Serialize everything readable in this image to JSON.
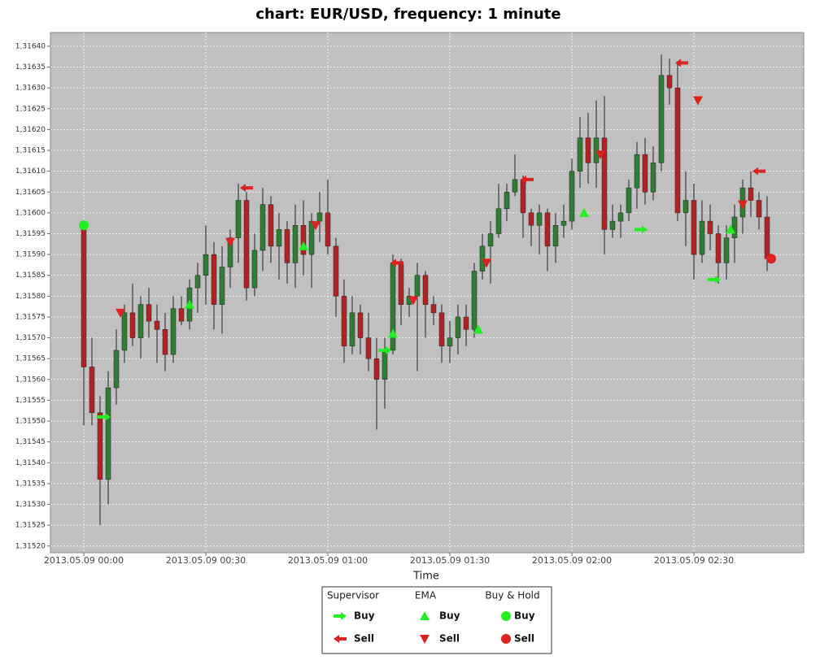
{
  "chart_data": {
    "type": "candlestick",
    "title": "chart: EUR/USD, frequency: 1 minute",
    "x_label": "Time",
    "x": [
      "2013.05.09 00:00",
      "2013.05.09 00:02",
      "2013.05.09 00:04",
      "2013.05.09 00:06",
      "2013.05.09 00:08",
      "2013.05.09 00:10",
      "2013.05.09 00:12",
      "2013.05.09 00:14",
      "2013.05.09 00:16",
      "2013.05.09 00:18",
      "2013.05.09 00:20",
      "2013.05.09 00:22",
      "2013.05.09 00:24",
      "2013.05.09 00:26",
      "2013.05.09 00:28",
      "2013.05.09 00:30",
      "2013.05.09 00:32",
      "2013.05.09 00:34",
      "2013.05.09 00:36",
      "2013.05.09 00:38",
      "2013.05.09 00:40",
      "2013.05.09 00:42",
      "2013.05.09 00:44",
      "2013.05.09 00:46",
      "2013.05.09 00:48",
      "2013.05.09 00:50",
      "2013.05.09 00:52",
      "2013.05.09 00:54",
      "2013.05.09 00:56",
      "2013.05.09 00:58",
      "2013.05.09 01:00",
      "2013.05.09 01:02",
      "2013.05.09 01:04",
      "2013.05.09 01:06",
      "2013.05.09 01:08",
      "2013.05.09 01:10",
      "2013.05.09 01:12",
      "2013.05.09 01:14",
      "2013.05.09 01:16",
      "2013.05.09 01:18",
      "2013.05.09 01:20",
      "2013.05.09 01:22",
      "2013.05.09 01:24",
      "2013.05.09 01:26",
      "2013.05.09 01:28",
      "2013.05.09 01:30",
      "2013.05.09 01:32",
      "2013.05.09 01:34",
      "2013.05.09 01:36",
      "2013.05.09 01:38",
      "2013.05.09 01:40",
      "2013.05.09 01:42",
      "2013.05.09 01:44",
      "2013.05.09 01:46",
      "2013.05.09 01:48",
      "2013.05.09 01:50",
      "2013.05.09 01:52",
      "2013.05.09 01:54",
      "2013.05.09 01:56",
      "2013.05.09 01:58",
      "2013.05.09 02:00",
      "2013.05.09 02:02",
      "2013.05.09 02:04",
      "2013.05.09 02:06",
      "2013.05.09 02:08",
      "2013.05.09 02:10",
      "2013.05.09 02:12",
      "2013.05.09 02:14",
      "2013.05.09 02:16",
      "2013.05.09 02:18",
      "2013.05.09 02:20",
      "2013.05.09 02:22",
      "2013.05.09 02:24",
      "2013.05.09 02:26",
      "2013.05.09 02:28",
      "2013.05.09 02:30",
      "2013.05.09 02:32",
      "2013.05.09 02:34",
      "2013.05.09 02:36",
      "2013.05.09 02:38",
      "2013.05.09 02:40",
      "2013.05.09 02:42",
      "2013.05.09 02:44",
      "2013.05.09 02:46",
      "2013.05.09 02:48"
    ],
    "open": [
      1.31597,
      1.31563,
      1.31552,
      1.31536,
      1.31558,
      1.31567,
      1.31576,
      1.3157,
      1.31578,
      1.31574,
      1.31572,
      1.31566,
      1.31577,
      1.31574,
      1.31582,
      1.31585,
      1.3159,
      1.31578,
      1.31587,
      1.31594,
      1.31603,
      1.31582,
      1.31591,
      1.31602,
      1.31592,
      1.31596,
      1.31588,
      1.31597,
      1.3159,
      1.31598,
      1.316,
      1.31592,
      1.3158,
      1.31568,
      1.31576,
      1.3157,
      1.31565,
      1.3156,
      1.31567,
      1.31588,
      1.31578,
      1.3158,
      1.31585,
      1.31578,
      1.31576,
      1.31568,
      1.3157,
      1.31575,
      1.31572,
      1.31586,
      1.31592,
      1.31595,
      1.31601,
      1.31605,
      1.31608,
      1.316,
      1.31597,
      1.316,
      1.31592,
      1.31597,
      1.31598,
      1.3161,
      1.31618,
      1.31612,
      1.31618,
      1.31596,
      1.31598,
      1.316,
      1.31606,
      1.31614,
      1.31605,
      1.31612,
      1.31633,
      1.3163,
      1.316,
      1.31603,
      1.3159,
      1.31598,
      1.31595,
      1.31588,
      1.31594,
      1.31599,
      1.31606,
      1.31603,
      1.31599
    ],
    "high": [
      1.31598,
      1.3157,
      1.31556,
      1.31562,
      1.31572,
      1.31578,
      1.31583,
      1.3158,
      1.31582,
      1.31578,
      1.31576,
      1.3158,
      1.3158,
      1.31584,
      1.31588,
      1.31597,
      1.31593,
      1.31592,
      1.31596,
      1.31607,
      1.31605,
      1.31595,
      1.31606,
      1.31604,
      1.316,
      1.31598,
      1.31602,
      1.31603,
      1.316,
      1.31605,
      1.31608,
      1.31594,
      1.31584,
      1.3158,
      1.31578,
      1.31576,
      1.3157,
      1.3157,
      1.3159,
      1.31589,
      1.31582,
      1.31588,
      1.31586,
      1.3158,
      1.31578,
      1.31574,
      1.31578,
      1.31578,
      1.31588,
      1.31595,
      1.31598,
      1.31607,
      1.31607,
      1.31614,
      1.31609,
      1.31601,
      1.31602,
      1.31601,
      1.316,
      1.31602,
      1.31613,
      1.31623,
      1.31624,
      1.31627,
      1.31628,
      1.31602,
      1.31602,
      1.31608,
      1.31617,
      1.31618,
      1.31616,
      1.31638,
      1.31637,
      1.31636,
      1.3161,
      1.31607,
      1.31603,
      1.31602,
      1.31597,
      1.31597,
      1.31602,
      1.31608,
      1.3161,
      1.31605,
      1.31604
    ],
    "low": [
      1.31549,
      1.31549,
      1.31525,
      1.3153,
      1.31554,
      1.31564,
      1.31568,
      1.31565,
      1.3157,
      1.31564,
      1.31562,
      1.31564,
      1.31573,
      1.31572,
      1.31576,
      1.31578,
      1.31572,
      1.31571,
      1.31582,
      1.31588,
      1.31579,
      1.3158,
      1.31586,
      1.31588,
      1.31584,
      1.31583,
      1.31582,
      1.31585,
      1.31582,
      1.31593,
      1.3159,
      1.31575,
      1.31564,
      1.31566,
      1.31566,
      1.31562,
      1.31548,
      1.31553,
      1.31566,
      1.31573,
      1.31575,
      1.31562,
      1.3157,
      1.31573,
      1.31564,
      1.31564,
      1.31566,
      1.31568,
      1.3157,
      1.31584,
      1.31583,
      1.31594,
      1.31598,
      1.31604,
      1.31594,
      1.31592,
      1.3159,
      1.31586,
      1.31588,
      1.31594,
      1.31596,
      1.31606,
      1.31607,
      1.31606,
      1.3159,
      1.31594,
      1.31594,
      1.31598,
      1.31601,
      1.31602,
      1.31603,
      1.3161,
      1.31626,
      1.31598,
      1.31592,
      1.31584,
      1.31588,
      1.31591,
      1.31583,
      1.31584,
      1.31588,
      1.31595,
      1.31599,
      1.31596,
      1.31586
    ],
    "close": [
      1.31563,
      1.31552,
      1.31536,
      1.31558,
      1.31567,
      1.31576,
      1.3157,
      1.31578,
      1.31574,
      1.31572,
      1.31566,
      1.31577,
      1.31574,
      1.31582,
      1.31585,
      1.3159,
      1.31578,
      1.31587,
      1.31594,
      1.31603,
      1.31582,
      1.31591,
      1.31602,
      1.31592,
      1.31596,
      1.31588,
      1.31597,
      1.3159,
      1.31598,
      1.316,
      1.31592,
      1.3158,
      1.31568,
      1.31576,
      1.3157,
      1.31565,
      1.3156,
      1.31567,
      1.31588,
      1.31578,
      1.3158,
      1.31585,
      1.31578,
      1.31576,
      1.31568,
      1.3157,
      1.31575,
      1.31572,
      1.31586,
      1.31592,
      1.31595,
      1.31601,
      1.31605,
      1.31608,
      1.316,
      1.31597,
      1.316,
      1.31592,
      1.31597,
      1.31598,
      1.3161,
      1.31618,
      1.31612,
      1.31618,
      1.31596,
      1.31598,
      1.316,
      1.31606,
      1.31614,
      1.31605,
      1.31612,
      1.31633,
      1.3163,
      1.316,
      1.31603,
      1.3159,
      1.31598,
      1.31595,
      1.31588,
      1.31594,
      1.31599,
      1.31606,
      1.31603,
      1.31599,
      1.31589
    ],
    "up_color": "#2e7d32",
    "down_color": "#b22222",
    "xlim": [
      "2013.05.09 00:00",
      "2013.05.09 02:50"
    ],
    "xticks": [
      "2013.05.09 00:00",
      "2013.05.09 00:30",
      "2013.05.09 01:00",
      "2013.05.09 01:30",
      "2013.05.09 02:00",
      "2013.05.09 02:30"
    ],
    "ylim": [
      1.315184,
      1.316433
    ],
    "yticks": [
      {
        "value": 1.3152,
        "label": "1,31520"
      },
      {
        "value": 1.31525,
        "label": "1,31525"
      },
      {
        "value": 1.3153,
        "label": "1,31530"
      },
      {
        "value": 1.31535,
        "label": "1,31535"
      },
      {
        "value": 1.3154,
        "label": "1,31540"
      },
      {
        "value": 1.31545,
        "label": "1,31545"
      },
      {
        "value": 1.3155,
        "label": "1,31550"
      },
      {
        "value": 1.31555,
        "label": "1,31555"
      },
      {
        "value": 1.3156,
        "label": "1,31560"
      },
      {
        "value": 1.31565,
        "label": "1,31565"
      },
      {
        "value": 1.3157,
        "label": "1,31570"
      },
      {
        "value": 1.31575,
        "label": "1,31575"
      },
      {
        "value": 1.3158,
        "label": "1,31580"
      },
      {
        "value": 1.31585,
        "label": "1,31585"
      },
      {
        "value": 1.3159,
        "label": "1,31590"
      },
      {
        "value": 1.31595,
        "label": "1,31595"
      },
      {
        "value": 1.316,
        "label": "1,31600"
      },
      {
        "value": 1.31605,
        "label": "1,31605"
      },
      {
        "value": 1.3161,
        "label": "1,31610"
      },
      {
        "value": 1.31615,
        "label": "1,31615"
      },
      {
        "value": 1.3162,
        "label": "1,31620"
      },
      {
        "value": 1.31625,
        "label": "1,31625"
      },
      {
        "value": 1.3163,
        "label": "1,31630"
      },
      {
        "value": 1.31635,
        "label": "1,31635"
      },
      {
        "value": 1.3164,
        "label": "1,31640"
      }
    ],
    "grid": true,
    "signals": [
      {
        "name": "Supervisor",
        "series": [
          {
            "name": "Buy",
            "marker": "arrow-right",
            "color": "#22ee22",
            "x": [
              "2013.05.09 00:05",
              "2013.05.09 01:14",
              "2013.05.09 02:17",
              "2013.05.09 02:35"
            ],
            "values": [
              1.31551,
              1.31567,
              1.31596,
              1.31584
            ]
          },
          {
            "name": "Sell",
            "marker": "arrow-left",
            "color": "#dd2222",
            "x": [
              "2013.05.09 00:40",
              "2013.05.09 01:17",
              "2013.05.09 01:49",
              "2013.05.09 02:27",
              "2013.05.09 02:46"
            ],
            "values": [
              1.31606,
              1.31588,
              1.31608,
              1.31636,
              1.3161
            ]
          }
        ]
      },
      {
        "name": "EMA",
        "series": [
          {
            "name": "Buy",
            "marker": "triangle-up",
            "color": "#22ee22",
            "x": [
              "2013.05.09 00:26",
              "2013.05.09 00:54",
              "2013.05.09 01:16",
              "2013.05.09 01:37",
              "2013.05.09 02:03",
              "2013.05.09 02:39"
            ],
            "values": [
              1.31578,
              1.31592,
              1.31571,
              1.31572,
              1.316,
              1.31596
            ]
          },
          {
            "name": "Sell",
            "marker": "triangle-down",
            "color": "#dd2222",
            "x": [
              "2013.05.09 00:09",
              "2013.05.09 00:36",
              "2013.05.09 00:57",
              "2013.05.09 01:21",
              "2013.05.09 01:39",
              "2013.05.09 02:07",
              "2013.05.09 02:31",
              "2013.05.09 02:42"
            ],
            "values": [
              1.31576,
              1.31593,
              1.31597,
              1.31579,
              1.31588,
              1.31614,
              1.31627,
              1.31602
            ]
          }
        ]
      },
      {
        "name": "Buy & Hold",
        "series": [
          {
            "name": "Buy",
            "marker": "circle",
            "color": "#22ee22",
            "x": [
              "2013.05.09 00:00"
            ],
            "values": [
              1.31597
            ]
          },
          {
            "name": "Sell",
            "marker": "circle",
            "color": "#dd2222",
            "x": [
              "2013.05.09 02:49"
            ],
            "values": [
              1.31589
            ]
          }
        ]
      }
    ]
  }
}
